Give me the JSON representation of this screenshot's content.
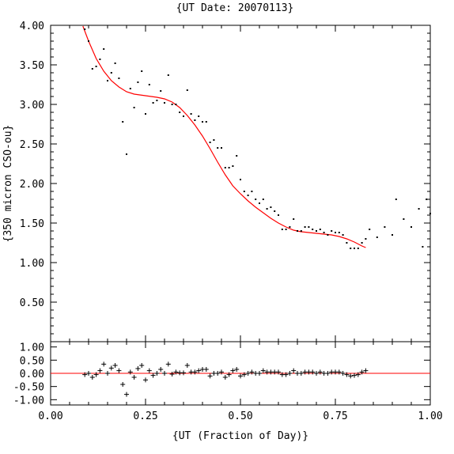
{
  "chart_data": [
    {
      "type": "scatter",
      "title": "{UT Date: 20070113}",
      "xlabel": "",
      "ylabel": "{350 micron CSO-ou}",
      "xlim": [
        0.0,
        1.0
      ],
      "ylim": [
        0.0,
        4.0
      ],
      "x_ticks": [
        "0.00",
        "0.25",
        "0.50",
        "0.75",
        "1.00"
      ],
      "y_ticks": [
        "0.50",
        "1.00",
        "1.50",
        "2.00",
        "2.50",
        "3.00",
        "3.50",
        "4.00"
      ],
      "colors": {
        "points": "#000000",
        "fit": "#ff0000"
      },
      "series": [
        {
          "mode": "points",
          "x": [
            0.09,
            0.1,
            0.11,
            0.12,
            0.13,
            0.14,
            0.15,
            0.16,
            0.17,
            0.18,
            0.19,
            0.2,
            0.21,
            0.22,
            0.23,
            0.24,
            0.25,
            0.26,
            0.27,
            0.28,
            0.29,
            0.3,
            0.31,
            0.32,
            0.33,
            0.34,
            0.35,
            0.36,
            0.37,
            0.38,
            0.39,
            0.4,
            0.41,
            0.42,
            0.43,
            0.44,
            0.45,
            0.46,
            0.47,
            0.48,
            0.49,
            0.5,
            0.51,
            0.52,
            0.53,
            0.54,
            0.55,
            0.56,
            0.57,
            0.58,
            0.59,
            0.6,
            0.61,
            0.62,
            0.63,
            0.64,
            0.65,
            0.66,
            0.67,
            0.68,
            0.69,
            0.7,
            0.71,
            0.72,
            0.73,
            0.74,
            0.75,
            0.76,
            0.77,
            0.78,
            0.79,
            0.8,
            0.81,
            0.82,
            0.83,
            0.84,
            0.86,
            0.88,
            0.9,
            0.91,
            0.93,
            0.95,
            0.97,
            0.98,
            0.99,
            1.0
          ],
          "y": [
            3.95,
            3.8,
            3.45,
            3.48,
            3.57,
            3.7,
            3.3,
            3.4,
            3.52,
            3.33,
            2.78,
            2.37,
            3.2,
            2.96,
            3.28,
            3.42,
            2.88,
            3.25,
            3.02,
            3.05,
            3.17,
            3.02,
            3.37,
            3.0,
            3.0,
            2.9,
            2.85,
            3.18,
            2.88,
            2.8,
            2.85,
            2.78,
            2.78,
            2.52,
            2.55,
            2.45,
            2.45,
            2.2,
            2.2,
            2.22,
            2.35,
            2.05,
            1.9,
            1.85,
            1.9,
            1.8,
            1.75,
            1.8,
            1.68,
            1.7,
            1.65,
            1.6,
            1.42,
            1.42,
            1.45,
            1.55,
            1.4,
            1.4,
            1.45,
            1.45,
            1.42,
            1.4,
            1.42,
            1.38,
            1.35,
            1.4,
            1.38,
            1.38,
            1.35,
            1.25,
            1.18,
            1.18,
            1.18,
            1.25,
            1.3,
            1.42,
            1.32,
            1.45,
            1.35,
            1.8,
            1.55,
            1.45,
            1.68,
            1.2,
            1.8,
            1.62
          ]
        },
        {
          "mode": "line",
          "x": [
            0.085,
            0.1,
            0.12,
            0.14,
            0.16,
            0.18,
            0.2,
            0.22,
            0.25,
            0.28,
            0.3,
            0.32,
            0.34,
            0.36,
            0.38,
            0.4,
            0.42,
            0.44,
            0.46,
            0.48,
            0.5,
            0.52,
            0.54,
            0.56,
            0.58,
            0.6,
            0.62,
            0.64,
            0.66,
            0.68,
            0.7,
            0.72,
            0.74,
            0.76,
            0.78,
            0.8,
            0.82,
            0.83
          ],
          "y": [
            3.99,
            3.8,
            3.58,
            3.42,
            3.3,
            3.22,
            3.16,
            3.13,
            3.11,
            3.09,
            3.07,
            3.03,
            2.96,
            2.86,
            2.74,
            2.6,
            2.44,
            2.27,
            2.11,
            1.97,
            1.87,
            1.78,
            1.7,
            1.63,
            1.56,
            1.5,
            1.45,
            1.41,
            1.39,
            1.38,
            1.37,
            1.36,
            1.35,
            1.33,
            1.3,
            1.26,
            1.21,
            1.19
          ]
        }
      ]
    },
    {
      "type": "scatter",
      "title": "",
      "xlabel": "{UT (Fraction of Day)}",
      "ylabel": "",
      "xlim": [
        0.0,
        1.0
      ],
      "ylim": [
        -1.2,
        1.2
      ],
      "x_ticks": [
        "0.00",
        "0.25",
        "0.50",
        "0.75",
        "1.00"
      ],
      "y_ticks": [
        "1.00",
        "0.50",
        "0.00",
        "-0.50",
        "-1.00"
      ],
      "colors": {
        "points": "#000000",
        "zero_line": "#ff0000"
      },
      "series": [
        {
          "mode": "plus",
          "x": [
            0.09,
            0.1,
            0.11,
            0.12,
            0.13,
            0.14,
            0.15,
            0.16,
            0.17,
            0.18,
            0.19,
            0.2,
            0.21,
            0.22,
            0.23,
            0.24,
            0.25,
            0.26,
            0.27,
            0.28,
            0.29,
            0.3,
            0.31,
            0.32,
            0.33,
            0.34,
            0.35,
            0.36,
            0.37,
            0.38,
            0.39,
            0.4,
            0.41,
            0.42,
            0.43,
            0.44,
            0.45,
            0.46,
            0.47,
            0.48,
            0.49,
            0.5,
            0.51,
            0.52,
            0.53,
            0.54,
            0.55,
            0.56,
            0.57,
            0.58,
            0.59,
            0.6,
            0.61,
            0.62,
            0.63,
            0.64,
            0.65,
            0.66,
            0.67,
            0.68,
            0.69,
            0.7,
            0.71,
            0.72,
            0.73,
            0.74,
            0.75,
            0.76,
            0.77,
            0.78,
            0.79,
            0.8,
            0.81,
            0.82,
            0.83
          ],
          "y": [
            -0.05,
            0.0,
            -0.15,
            -0.05,
            0.1,
            0.35,
            0.0,
            0.2,
            0.3,
            0.1,
            -0.42,
            -0.8,
            0.05,
            -0.15,
            0.18,
            0.3,
            -0.25,
            0.1,
            -0.08,
            0.0,
            0.15,
            0.0,
            0.35,
            -0.03,
            0.05,
            0.02,
            0.02,
            0.3,
            0.05,
            0.05,
            0.1,
            0.15,
            0.15,
            -0.1,
            0.0,
            0.0,
            0.05,
            -0.15,
            -0.05,
            0.1,
            0.15,
            -0.1,
            -0.05,
            0.0,
            0.05,
            0.0,
            0.0,
            0.1,
            0.05,
            0.05,
            0.05,
            0.05,
            -0.05,
            -0.05,
            0.0,
            0.1,
            0.0,
            0.0,
            0.05,
            0.05,
            0.05,
            0.0,
            0.05,
            0.0,
            0.0,
            0.05,
            0.05,
            0.05,
            0.0,
            -0.05,
            -0.1,
            -0.08,
            -0.05,
            0.05,
            0.1
          ]
        }
      ]
    }
  ]
}
